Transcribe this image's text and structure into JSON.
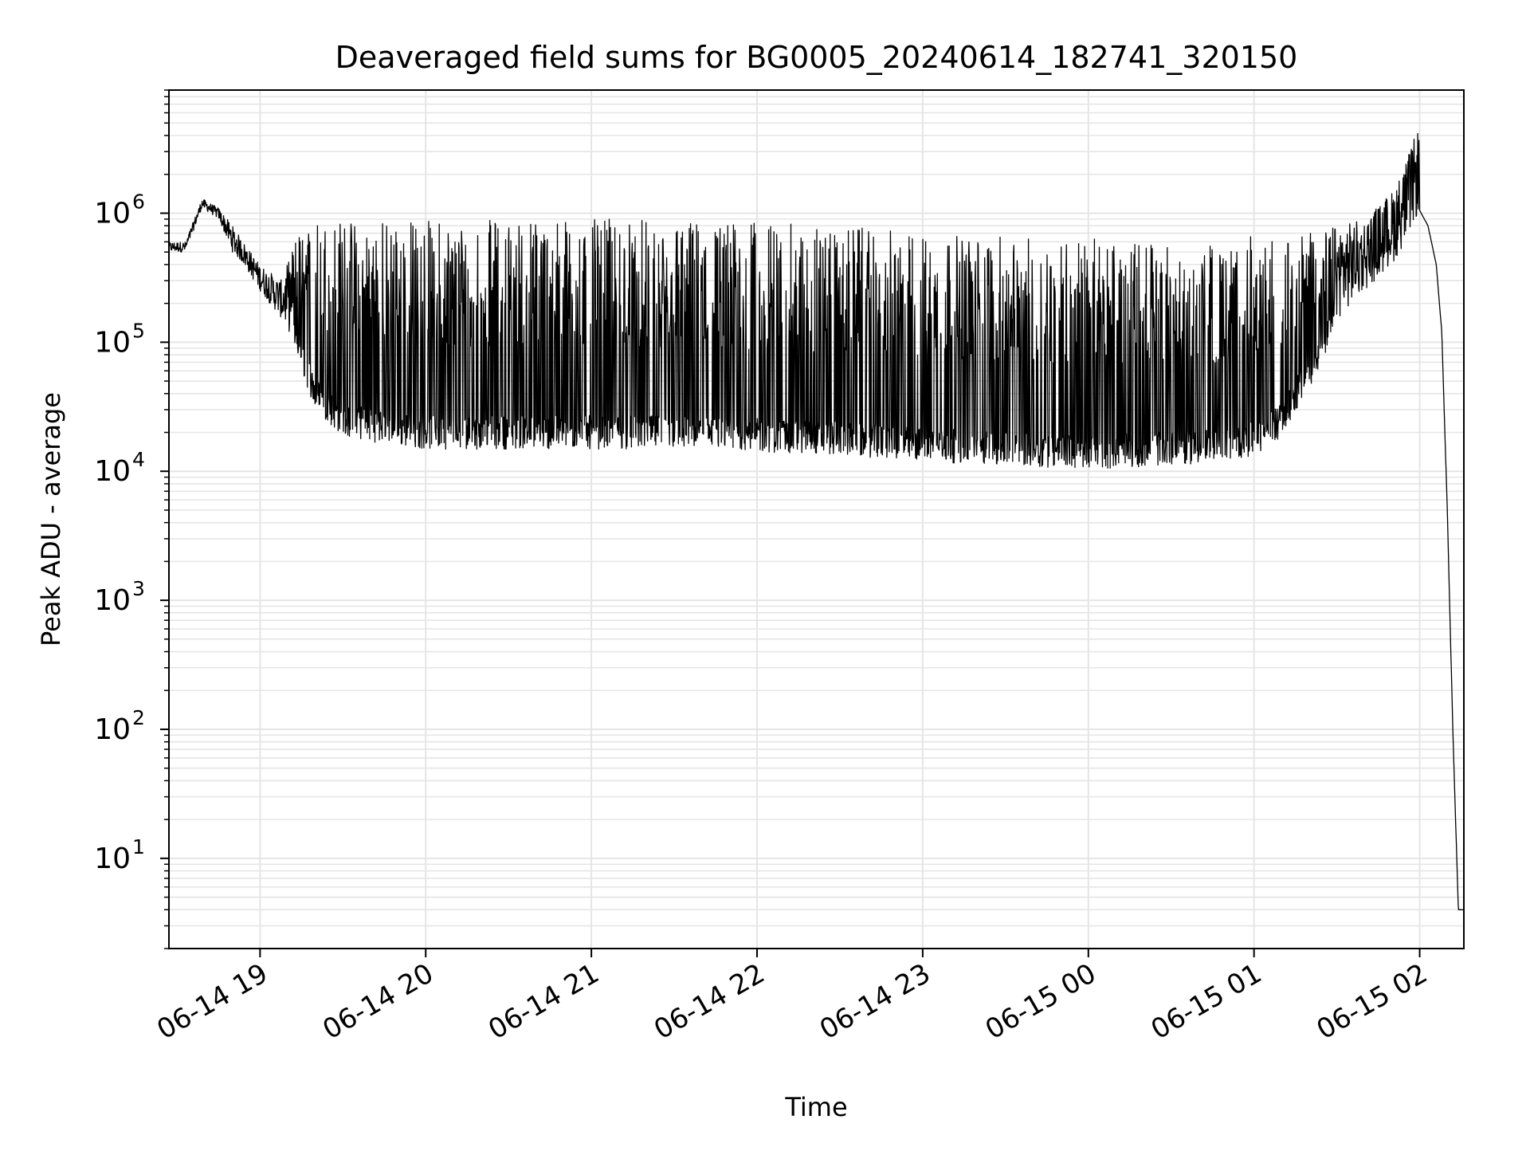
{
  "chart_data": {
    "type": "line",
    "title": "Deaveraged field sums for BG0005_20240614_182741_320150",
    "xlabel": "Time",
    "ylabel": "Peak ADU - average",
    "x_scale": "time",
    "y_scale": "log",
    "xlim": [
      "2024-06-14 18:27",
      "2024-06-15 02:16"
    ],
    "ylim": [
      2,
      9000000
    ],
    "grid": true,
    "grid_minor": true,
    "x_ticks": [
      {
        "value": "2024-06-14 19:00",
        "label": "06-14 19"
      },
      {
        "value": "2024-06-14 20:00",
        "label": "06-14 20"
      },
      {
        "value": "2024-06-14 21:00",
        "label": "06-14 21"
      },
      {
        "value": "2024-06-14 22:00",
        "label": "06-14 22"
      },
      {
        "value": "2024-06-14 23:00",
        "label": "06-14 23"
      },
      {
        "value": "2024-06-15 00:00",
        "label": "06-15 00"
      },
      {
        "value": "2024-06-15 01:00",
        "label": "06-15 01"
      },
      {
        "value": "2024-06-15 02:00",
        "label": "06-15 02"
      }
    ],
    "y_ticks": [
      {
        "value": 10,
        "base": "10",
        "exp": "1"
      },
      {
        "value": 100,
        "base": "10",
        "exp": "2"
      },
      {
        "value": 1000,
        "base": "10",
        "exp": "3"
      },
      {
        "value": 10000,
        "base": "10",
        "exp": "4"
      },
      {
        "value": 100000,
        "base": "10",
        "exp": "5"
      },
      {
        "value": 1000000,
        "base": "10",
        "exp": "6"
      }
    ],
    "line_color": "#000000",
    "grid_color": "#e5e5e5",
    "series": [
      {
        "envelope": {
          "t": [
            "2024-06-14 18:27",
            "2024-06-14 18:33",
            "2024-06-14 18:39",
            "2024-06-14 18:45",
            "2024-06-14 18:50",
            "2024-06-14 18:54",
            "2024-06-14 19:00",
            "2024-06-14 19:08",
            "2024-06-14 19:15",
            "2024-06-14 19:20",
            "2024-06-14 19:30",
            "2024-06-14 19:45",
            "2024-06-14 20:00",
            "2024-06-14 20:15",
            "2024-06-14 20:30",
            "2024-06-14 20:45",
            "2024-06-14 21:00",
            "2024-06-14 21:30",
            "2024-06-14 22:00",
            "2024-06-14 22:30",
            "2024-06-14 23:00",
            "2024-06-14 23:30",
            "2024-06-15 00:00",
            "2024-06-15 00:30",
            "2024-06-15 00:50",
            "2024-06-15 01:00",
            "2024-06-15 01:10",
            "2024-06-15 01:20",
            "2024-06-15 01:30",
            "2024-06-15 01:40",
            "2024-06-15 01:50",
            "2024-06-15 01:55",
            "2024-06-15 02:00",
            "2024-06-15 02:03",
            "2024-06-15 02:06",
            "2024-06-15 02:08",
            "2024-06-15 02:10",
            "2024-06-15 02:12",
            "2024-06-15 02:14",
            "2024-06-15 02:16"
          ],
          "base": [
            500000,
            500000,
            1100000,
            900000,
            500000,
            400000,
            250000,
            150000,
            80000,
            40000,
            25000,
            22000,
            20000,
            20000,
            20000,
            20000,
            20000,
            20000,
            19000,
            18000,
            16000,
            15000,
            14000,
            15000,
            16000,
            18000,
            25000,
            60000,
            150000,
            250000,
            400000,
            600000,
            1050000,
            800000,
            400000,
            120000,
            5000,
            100,
            4,
            4
          ],
          "peak": [
            600000,
            600000,
            1300000,
            1100000,
            800000,
            600000,
            400000,
            300000,
            900000,
            900000,
            900000,
            900000,
            900000,
            900000,
            900000,
            950000,
            900000,
            900000,
            850000,
            800000,
            700000,
            650000,
            650000,
            600000,
            550000,
            700000,
            600000,
            700000,
            800000,
            900000,
            1500000,
            2500000,
            5000000,
            1200000,
            800000,
            300000,
            5000,
            100,
            4,
            4
          ],
          "dips": false
        }
      }
    ]
  }
}
